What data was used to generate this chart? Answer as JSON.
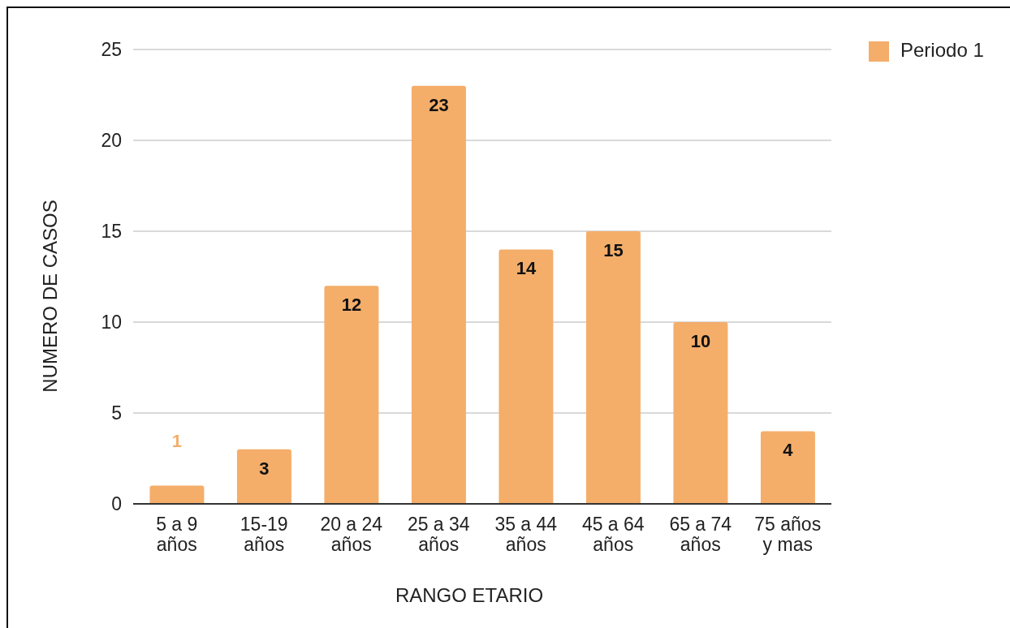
{
  "chart_data": {
    "type": "bar",
    "xlabel": "RANGO ETARIO",
    "ylabel": "NUMERO DE CASOS",
    "categories": [
      "5 a 9 años",
      "15-19 años",
      "20 a 24 años",
      "25 a 34 años",
      "35 a 44 años",
      "45 a 64 años",
      "65 a 74 años",
      "75 años y mas"
    ],
    "series": [
      {
        "name": "Periodo 1",
        "color": "#f4ae6a",
        "values": [
          1,
          3,
          12,
          23,
          14,
          15,
          10,
          4
        ]
      }
    ],
    "ylim": [
      0,
      25
    ],
    "yticks": [
      0,
      5,
      10,
      15,
      20,
      25
    ],
    "grid": "y",
    "legend": "top right",
    "data_labels": true
  }
}
